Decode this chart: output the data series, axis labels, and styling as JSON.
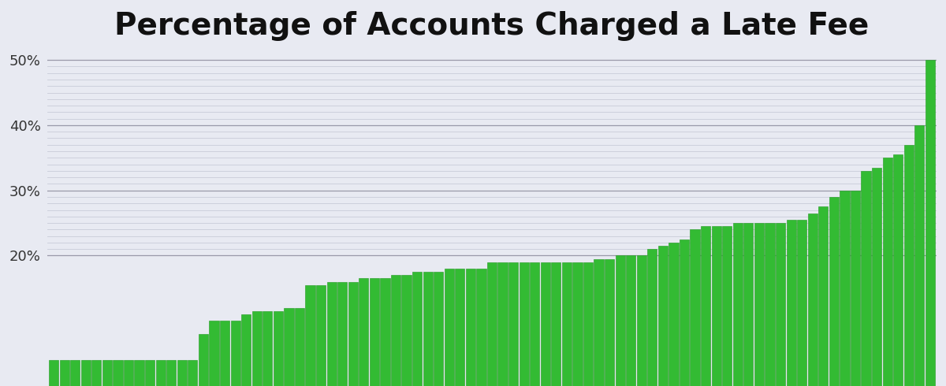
{
  "title": "Percentage of Accounts Charged a Late Fee",
  "title_fontsize": 28,
  "title_fontweight": "bold",
  "background_color": "#e8eaf2",
  "bar_color": "#33bb33",
  "bar_edgecolor": "#229922",
  "ylim": [
    0,
    0.515
  ],
  "yticks": [
    0.2,
    0.3,
    0.4,
    0.5
  ],
  "ytick_labels": [
    "20%",
    "30%",
    "40%",
    "50%"
  ],
  "minor_yticks": [
    0.21,
    0.22,
    0.23,
    0.24,
    0.25,
    0.26,
    0.27,
    0.28,
    0.29,
    0.31,
    0.32,
    0.33,
    0.34,
    0.35,
    0.36,
    0.37,
    0.38,
    0.39,
    0.41,
    0.42,
    0.43,
    0.44,
    0.45,
    0.46,
    0.47,
    0.48,
    0.49
  ],
  "grid_color": "#c8cbd8",
  "values": [
    0.04,
    0.04,
    0.04,
    0.04,
    0.04,
    0.04,
    0.04,
    0.04,
    0.04,
    0.04,
    0.04,
    0.04,
    0.04,
    0.04,
    0.08,
    0.1,
    0.1,
    0.1,
    0.11,
    0.115,
    0.115,
    0.115,
    0.12,
    0.12,
    0.155,
    0.155,
    0.16,
    0.16,
    0.16,
    0.165,
    0.165,
    0.165,
    0.17,
    0.17,
    0.175,
    0.175,
    0.175,
    0.18,
    0.18,
    0.18,
    0.18,
    0.19,
    0.19,
    0.19,
    0.19,
    0.19,
    0.19,
    0.19,
    0.19,
    0.19,
    0.19,
    0.195,
    0.195,
    0.2,
    0.2,
    0.2,
    0.21,
    0.215,
    0.22,
    0.225,
    0.24,
    0.245,
    0.245,
    0.245,
    0.25,
    0.25,
    0.25,
    0.25,
    0.25,
    0.255,
    0.255,
    0.265,
    0.275,
    0.29,
    0.3,
    0.3,
    0.33,
    0.335,
    0.35,
    0.355,
    0.37,
    0.4,
    0.5
  ]
}
